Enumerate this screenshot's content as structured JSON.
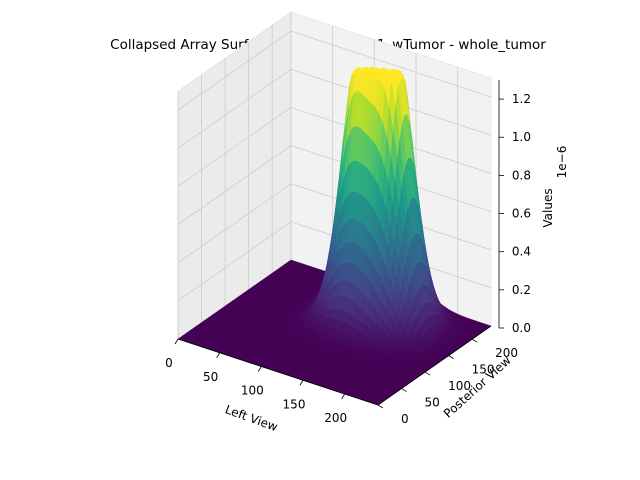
{
  "chart_data": {
    "type": "surface",
    "title": "Collapsed Array Surface Plot - Brats2021_wTumor - whole_tumor",
    "xlabel": "Left View",
    "ylabel": "Posterior View",
    "zlabel": "Values",
    "z_offset_text": "1e−6",
    "xlim": [
      0,
      240
    ],
    "ylim": [
      0,
      240
    ],
    "zlim": [
      0,
      1.3
    ],
    "x_ticks": [
      0,
      50,
      100,
      150,
      200
    ],
    "y_ticks": [
      0,
      50,
      100,
      150,
      200
    ],
    "z_ticks": [
      0.0,
      0.2,
      0.4,
      0.6,
      0.8,
      1.0,
      1.2
    ],
    "x_tick_labels": [
      "0",
      "50",
      "100",
      "150",
      "200"
    ],
    "y_tick_labels": [
      "0",
      "50",
      "100",
      "150",
      "200"
    ],
    "z_tick_labels": [
      "0.0",
      "0.2",
      "0.4",
      "0.6",
      "0.8",
      "1.0",
      "1.2"
    ],
    "colormap": "viridis",
    "grid": true,
    "peaks": [
      {
        "x": 150,
        "y": 190,
        "z": 1.25,
        "sx": 28,
        "sy": 30
      },
      {
        "x": 115,
        "y": 175,
        "z": 1.0,
        "sx": 22,
        "sy": 25
      },
      {
        "x": 160,
        "y": 165,
        "z": 0.55,
        "sx": 35,
        "sy": 35
      },
      {
        "x": 125,
        "y": 145,
        "z": 0.3,
        "sx": 30,
        "sy": 30
      }
    ],
    "support_region": {
      "x_range": [
        60,
        220
      ],
      "y_range": [
        80,
        240
      ]
    }
  }
}
